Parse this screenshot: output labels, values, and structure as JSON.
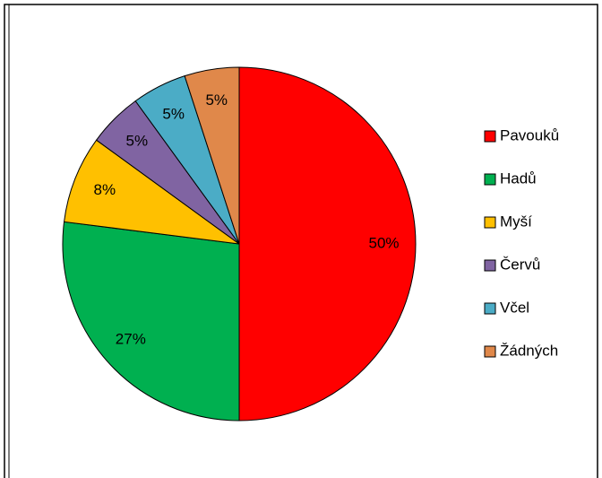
{
  "chart_data": {
    "type": "pie",
    "categories": [
      "Pavouků",
      "Hadů",
      "Myší",
      "Červů",
      "Včel",
      "Žádných"
    ],
    "values": [
      50,
      27,
      8,
      5,
      5,
      5
    ],
    "value_labels": [
      "50%",
      "27%",
      "8%",
      "5%",
      "5%",
      "5%"
    ],
    "colors": [
      "#ff0000",
      "#00b050",
      "#ffc000",
      "#8064a2",
      "#4bacc6",
      "#e0884a"
    ],
    "legend": "right"
  }
}
